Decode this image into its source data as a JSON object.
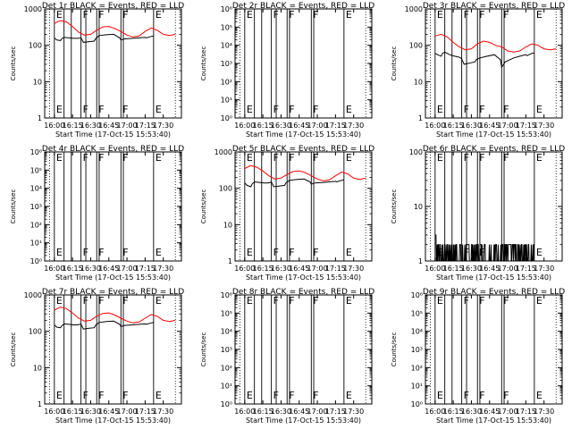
{
  "chart_data": [
    {
      "type": "line",
      "title": "Det 1r BLACK = Events, RED = LLD",
      "xlabel": "Start Time (17-Oct-15 15:53:40)",
      "ylabel": "Counts/sec",
      "yscale": "log",
      "xlim_minutes": [
        -8,
        105
      ],
      "ylim": [
        1,
        1000
      ],
      "yticks": [
        "1",
        "10",
        "100",
        "1000"
      ],
      "x_ticks": [
        "16:00",
        "16:15",
        "16:30",
        "16:45",
        "17:00",
        "17:15",
        "17:30"
      ],
      "markers": [
        {
          "label": "E",
          "x": 0
        },
        {
          "label": "F",
          "x": 22
        },
        {
          "label": "F",
          "x": 35
        },
        {
          "label": "F",
          "x": 55
        },
        {
          "label": "E",
          "x": 82
        }
      ],
      "series": [
        {
          "color": "#ff0000",
          "x": [
            0,
            5,
            10,
            15,
            20,
            25,
            30,
            35,
            40,
            45,
            50,
            55,
            60,
            65,
            70,
            75,
            80,
            85,
            90,
            95,
            100
          ],
          "y": [
            400,
            480,
            440,
            330,
            230,
            190,
            200,
            260,
            320,
            330,
            290,
            240,
            190,
            170,
            180,
            240,
            300,
            260,
            200,
            185,
            200
          ]
        },
        {
          "color": "#000000",
          "x": [
            0,
            2,
            5,
            6,
            8,
            12,
            16,
            19,
            21,
            22,
            24,
            28,
            33,
            34,
            37,
            43,
            49,
            54,
            55,
            58,
            65,
            70,
            75,
            76,
            80,
            82
          ],
          "y": [
            160,
            140,
            135,
            150,
            165,
            160,
            155,
            155,
            158,
            160,
            120,
            125,
            130,
            150,
            185,
            195,
            200,
            160,
            140,
            150,
            155,
            160,
            165,
            160,
            175,
            180
          ]
        }
      ]
    },
    {
      "type": "line",
      "title": "Det 2r BLACK = Events, RED = LLD",
      "xlabel": "Start Time (17-Oct-15 15:53:40)",
      "ylabel": "Counts/sec",
      "yscale": "log",
      "xlim_minutes": [
        -8,
        105
      ],
      "ylim": [
        1,
        1000000
      ],
      "yticks": [
        "10⁰",
        "10¹",
        "10²",
        "10³",
        "10⁴",
        "10⁵",
        "10⁶"
      ],
      "x_ticks": [
        "16:00",
        "16:15",
        "16:30",
        "16:45",
        "17:00",
        "17:15",
        "17:30"
      ],
      "markers": [
        {
          "label": "E",
          "x": 0
        },
        {
          "label": "F",
          "x": 22
        },
        {
          "label": "F",
          "x": 35
        },
        {
          "label": "F",
          "x": 55
        },
        {
          "label": "E",
          "x": 82
        }
      ],
      "series": []
    },
    {
      "type": "line",
      "title": "Det 3r BLACK = Events, RED = LLD",
      "xlabel": "Start Time (17-Oct-15 15:53:40)",
      "ylabel": "Counts/sec",
      "yscale": "log",
      "xlim_minutes": [
        -8,
        105
      ],
      "ylim": [
        1,
        1000
      ],
      "yticks": [
        "1",
        "10",
        "100",
        "1000"
      ],
      "x_ticks": [
        "16:00",
        "16:15",
        "16:30",
        "16:45",
        "17:00",
        "17:15",
        "17:30"
      ],
      "markers": [
        {
          "label": "E",
          "x": 0
        },
        {
          "label": "F",
          "x": 22
        },
        {
          "label": "F",
          "x": 35
        },
        {
          "label": "F",
          "x": 55
        },
        {
          "label": "E",
          "x": 82
        }
      ],
      "series": [
        {
          "color": "#ff0000",
          "x": [
            0,
            5,
            10,
            15,
            20,
            25,
            30,
            35,
            40,
            45,
            50,
            55,
            60,
            65,
            70,
            75,
            80,
            85,
            90,
            95,
            100
          ],
          "y": [
            180,
            200,
            170,
            120,
            90,
            75,
            80,
            110,
            130,
            120,
            100,
            90,
            70,
            65,
            70,
            90,
            110,
            100,
            80,
            75,
            80
          ]
        },
        {
          "color": "#000000",
          "x": [
            0,
            2,
            5,
            6,
            8,
            12,
            16,
            19,
            21,
            22,
            24,
            28,
            33,
            34,
            37,
            43,
            49,
            54,
            55,
            58,
            65,
            70,
            75,
            76,
            80,
            82
          ],
          "y": [
            60,
            55,
            50,
            60,
            65,
            55,
            50,
            48,
            45,
            42,
            30,
            32,
            35,
            40,
            45,
            50,
            55,
            40,
            25,
            35,
            45,
            50,
            55,
            52,
            60,
            62
          ]
        }
      ]
    },
    {
      "type": "line",
      "title": "Det 4r BLACK = Events, RED = LLD",
      "xlabel": "Start Time (17-Oct-15 15:53:40)",
      "ylabel": "Counts/sec",
      "yscale": "log",
      "xlim_minutes": [
        -8,
        105
      ],
      "ylim": [
        1,
        1000000
      ],
      "yticks": [
        "10⁰",
        "10¹",
        "10²",
        "10³",
        "10⁴",
        "10⁵",
        "10⁶"
      ],
      "x_ticks": [
        "16:00",
        "16:15",
        "16:30",
        "16:45",
        "17:00",
        "17:15",
        "17:30"
      ],
      "markers": [
        {
          "label": "E",
          "x": 0
        },
        {
          "label": "F",
          "x": 22
        },
        {
          "label": "F",
          "x": 35
        },
        {
          "label": "F",
          "x": 55
        },
        {
          "label": "E",
          "x": 82
        }
      ],
      "series": []
    },
    {
      "type": "line",
      "title": "Det 5r BLACK = Events, RED = LLD",
      "xlabel": "Start Time (17-Oct-15 15:53:40)",
      "ylabel": "Counts/sec",
      "yscale": "log",
      "xlim_minutes": [
        -8,
        105
      ],
      "ylim": [
        1,
        1000
      ],
      "yticks": [
        "1",
        "10",
        "100",
        "1000"
      ],
      "x_ticks": [
        "16:00",
        "16:15",
        "16:30",
        "16:45",
        "17:00",
        "17:15",
        "17:30"
      ],
      "markers": [
        {
          "label": "E",
          "x": 0
        },
        {
          "label": "F",
          "x": 22
        },
        {
          "label": "F",
          "x": 35
        },
        {
          "label": "F",
          "x": 55
        },
        {
          "label": "E",
          "x": 82
        }
      ],
      "series": [
        {
          "color": "#ff0000",
          "x": [
            0,
            5,
            10,
            15,
            20,
            25,
            30,
            35,
            40,
            45,
            50,
            55,
            60,
            65,
            70,
            75,
            80,
            85,
            90,
            95,
            100
          ],
          "y": [
            350,
            420,
            380,
            300,
            220,
            180,
            190,
            240,
            290,
            300,
            270,
            220,
            180,
            160,
            170,
            220,
            280,
            250,
            190,
            175,
            190
          ]
        },
        {
          "color": "#000000",
          "x": [
            0,
            2,
            5,
            6,
            8,
            12,
            16,
            19,
            21,
            22,
            24,
            28,
            33,
            34,
            37,
            43,
            49,
            54,
            55,
            58,
            65,
            70,
            75,
            76,
            80,
            82
          ],
          "y": [
            140,
            120,
            110,
            130,
            150,
            145,
            140,
            140,
            145,
            150,
            110,
            115,
            120,
            140,
            165,
            175,
            180,
            150,
            130,
            140,
            145,
            150,
            155,
            150,
            165,
            170
          ]
        }
      ]
    },
    {
      "type": "line",
      "title": "Det 6r BLACK = Events, RED = LLD",
      "xlabel": "Start Time (17-Oct-15 15:53:40)",
      "ylabel": "Counts/sec",
      "yscale": "log",
      "xlim_minutes": [
        -8,
        105
      ],
      "ylim": [
        1,
        100
      ],
      "yticks": [
        "1",
        "10",
        "100"
      ],
      "x_ticks": [
        "16:00",
        "16:15",
        "16:30",
        "16:45",
        "17:00",
        "17:15",
        "17:30"
      ],
      "markers": [
        {
          "label": "E",
          "x": 0
        },
        {
          "label": "F",
          "x": 22
        },
        {
          "label": "F",
          "x": 35
        },
        {
          "label": "F",
          "x": 55
        },
        {
          "label": "E",
          "x": 82
        }
      ],
      "series": [
        {
          "color": "#000000",
          "noisy": true,
          "x": [
            0,
            82
          ],
          "y": [
            1,
            2
          ]
        }
      ]
    },
    {
      "type": "line",
      "title": "Det 7r BLACK = Events, RED = LLD",
      "xlabel": "Start Time (17-Oct-15 15:53:40)",
      "ylabel": "Counts/sec",
      "yscale": "log",
      "xlim_minutes": [
        -8,
        105
      ],
      "ylim": [
        1,
        1000
      ],
      "yticks": [
        "1",
        "10",
        "100",
        "1000"
      ],
      "x_ticks": [
        "16:00",
        "16:15",
        "16:30",
        "16:45",
        "17:00",
        "17:15",
        "17:30"
      ],
      "markers": [
        {
          "label": "E",
          "x": 0
        },
        {
          "label": "F",
          "x": 22
        },
        {
          "label": "F",
          "x": 35
        },
        {
          "label": "F",
          "x": 55
        },
        {
          "label": "E",
          "x": 82
        }
      ],
      "series": [
        {
          "color": "#ff0000",
          "x": [
            0,
            5,
            10,
            15,
            20,
            25,
            30,
            35,
            40,
            45,
            50,
            55,
            60,
            65,
            70,
            75,
            80,
            85,
            90,
            95,
            100
          ],
          "y": [
            380,
            460,
            420,
            320,
            230,
            190,
            200,
            260,
            310,
            320,
            280,
            230,
            190,
            170,
            180,
            230,
            290,
            260,
            200,
            185,
            200
          ]
        },
        {
          "color": "#000000",
          "x": [
            0,
            2,
            5,
            6,
            8,
            12,
            16,
            19,
            21,
            22,
            24,
            28,
            33,
            34,
            37,
            43,
            49,
            54,
            55,
            58,
            65,
            70,
            75,
            76,
            80,
            82
          ],
          "y": [
            150,
            130,
            125,
            140,
            160,
            155,
            150,
            150,
            155,
            158,
            115,
            120,
            125,
            145,
            175,
            185,
            190,
            155,
            135,
            145,
            150,
            155,
            160,
            155,
            170,
            175
          ]
        }
      ]
    },
    {
      "type": "line",
      "title": "Det 8r BLACK = Events, RED = LLD",
      "xlabel": "Start Time (17-Oct-15 15:53:40)",
      "ylabel": "Counts/sec",
      "yscale": "log",
      "xlim_minutes": [
        -8,
        105
      ],
      "ylim": [
        1,
        1000000
      ],
      "yticks": [
        "10⁰",
        "10¹",
        "10²",
        "10³",
        "10⁴",
        "10⁵",
        "10⁶"
      ],
      "x_ticks": [
        "16:00",
        "16:15",
        "16:30",
        "16:45",
        "17:00",
        "17:15",
        "17:30"
      ],
      "markers": [
        {
          "label": "E",
          "x": 0
        },
        {
          "label": "F",
          "x": 22
        },
        {
          "label": "F",
          "x": 35
        },
        {
          "label": "F",
          "x": 55
        },
        {
          "label": "E",
          "x": 82
        }
      ],
      "series": []
    },
    {
      "type": "line",
      "title": "Det 9r BLACK = Events, RED = LLD",
      "xlabel": "Start Time (17-Oct-15 15:53:40)",
      "ylabel": "Counts/sec",
      "yscale": "log",
      "xlim_minutes": [
        -8,
        105
      ],
      "ylim": [
        1,
        1000000
      ],
      "yticks": [
        "10⁰",
        "10¹",
        "10²",
        "10³",
        "10⁴",
        "10⁵",
        "10⁶"
      ],
      "x_ticks": [
        "16:00",
        "16:15",
        "16:30",
        "16:45",
        "17:00",
        "17:15",
        "17:30"
      ],
      "markers": [
        {
          "label": "E",
          "x": 0
        },
        {
          "label": "F",
          "x": 22
        },
        {
          "label": "F",
          "x": 35
        },
        {
          "label": "F",
          "x": 55
        },
        {
          "label": "E",
          "x": 82
        }
      ],
      "series": []
    }
  ]
}
